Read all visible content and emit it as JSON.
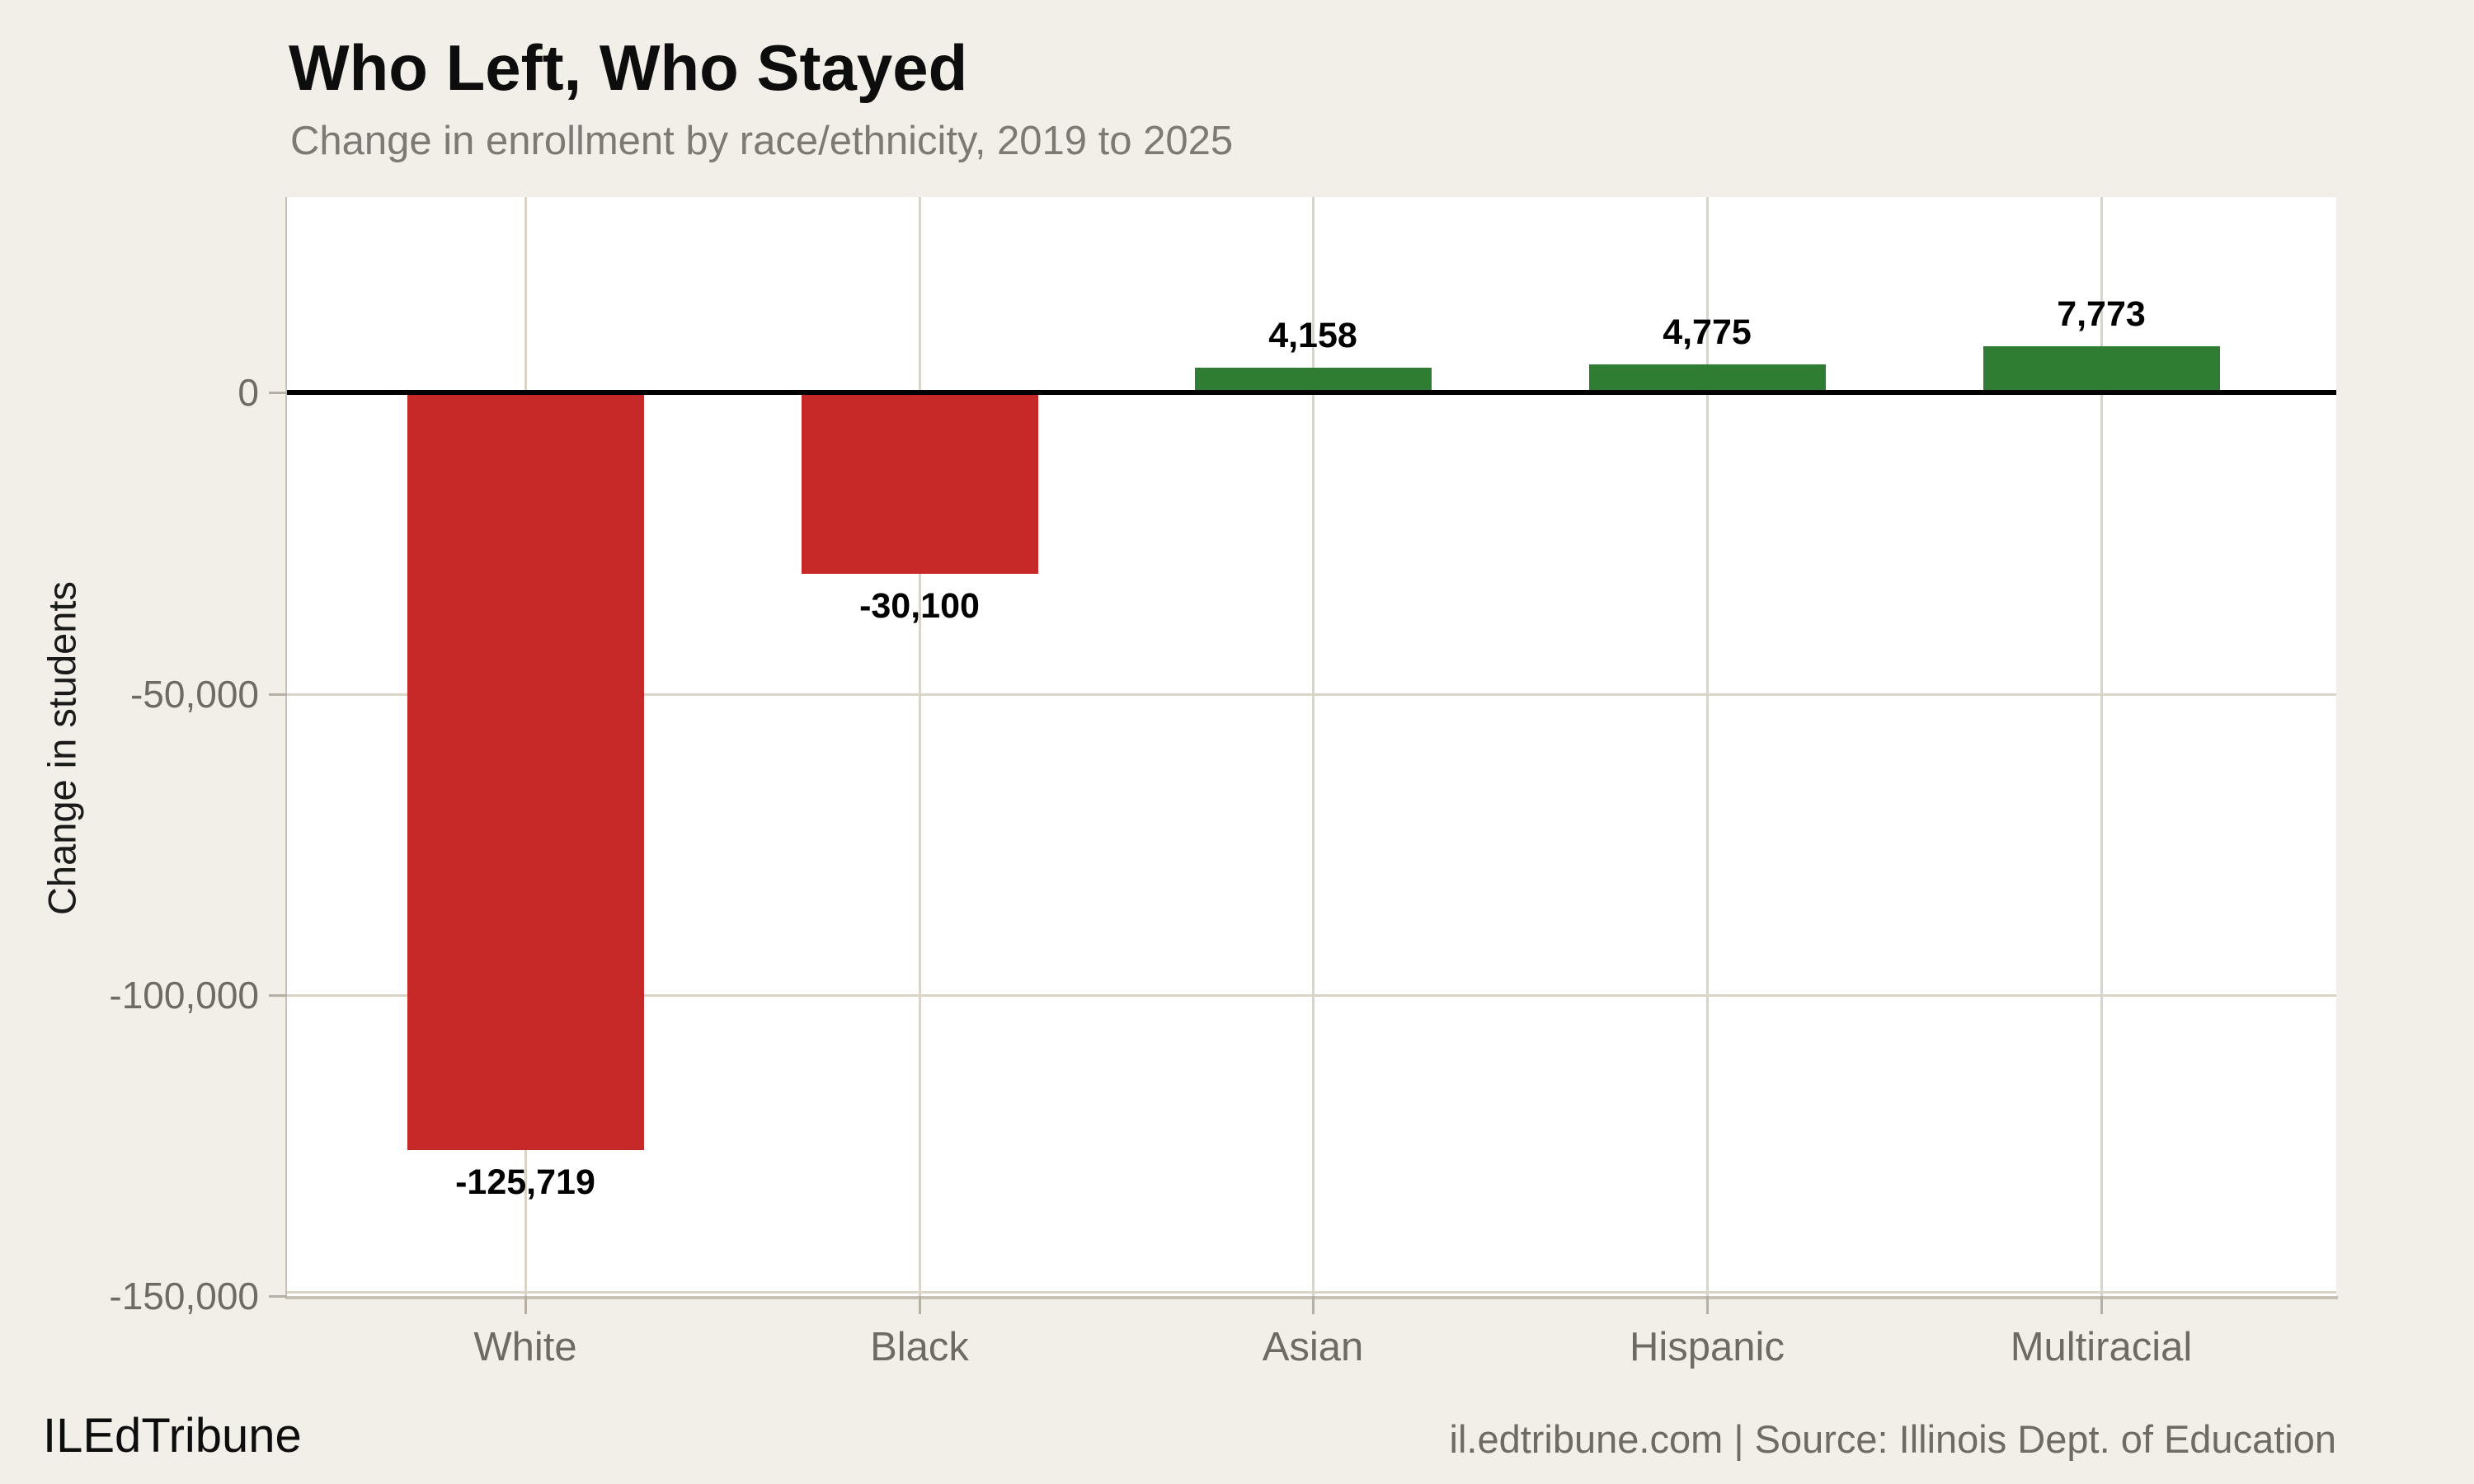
{
  "header": {
    "title": "Who Left, Who Stayed",
    "subtitle": "Change in enrollment by race/ethnicity, 2019 to 2025"
  },
  "y_axis": {
    "label": "Change in students"
  },
  "footer": {
    "brand": "ILEdTribune",
    "attribution": "il.edtribune.com | Source: Illinois Dept. of Education"
  },
  "chart_data": {
    "type": "bar",
    "title": "Who Left, Who Stayed",
    "subtitle": "Change in enrollment by race/ethnicity, 2019 to 2025",
    "categories": [
      "White",
      "Black",
      "Asian",
      "Hispanic",
      "Multiracial"
    ],
    "values": [
      -125719,
      -30100,
      4158,
      4775,
      7773
    ],
    "value_labels": [
      "-125,719",
      "-30,100",
      "4,158",
      "4,775",
      "7,773"
    ],
    "xlabel": "",
    "ylabel": "Change in students",
    "ylim": [
      -150000,
      32500
    ],
    "yticks": [
      0,
      -50000,
      -100000,
      -150000
    ],
    "ytick_labels": [
      "0",
      "-50,000",
      "-100,000",
      "-150,000"
    ],
    "grid": true,
    "legend": false,
    "bar_colors": {
      "positive": "#2e7d32",
      "negative": "#c62828"
    }
  },
  "colors": {
    "background": "#f2efe9",
    "plot_background": "#ffffff",
    "gridline": "#d9d3c8",
    "axis_line": "#c7c1b5",
    "tick_mark": "#b5afa4",
    "zero_line": "#000000",
    "title_text": "#0d0d0d",
    "subtitle_text": "#7d7973",
    "tick_label_text": "#6f6a62",
    "data_label_text": "#000000"
  }
}
